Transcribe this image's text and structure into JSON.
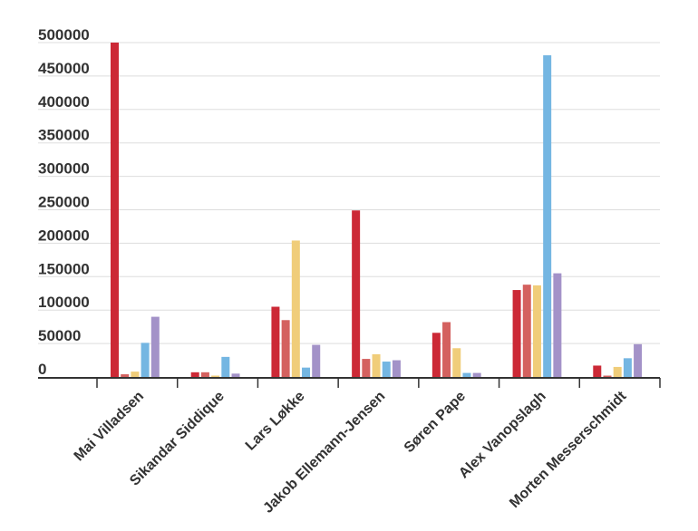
{
  "chart_data": {
    "type": "bar",
    "title": "",
    "xlabel": "",
    "ylabel": "",
    "ylim": [
      0,
      500000
    ],
    "yticks": [
      0,
      50000,
      100000,
      150000,
      200000,
      250000,
      300000,
      350000,
      400000,
      450000,
      500000
    ],
    "grid": true,
    "legend": "none",
    "categories": [
      "Mai Villadsen",
      "Sikandar Siddique",
      "Lars Løkke",
      "Jakob Ellemann-Jensen",
      "Søren Pape",
      "Alex Vanopslagh",
      "Morten Messerschmidt"
    ],
    "series": [
      {
        "color": "#cc2936",
        "values": [
          500000,
          7000,
          105000,
          249000,
          66000,
          130000,
          17000
        ]
      },
      {
        "color": "#d4615f",
        "values": [
          4000,
          7000,
          85000,
          27000,
          82000,
          138000,
          2000
        ]
      },
      {
        "color": "#f0cd7a",
        "values": [
          8000,
          2000,
          204000,
          34000,
          43000,
          137000,
          15000
        ]
      },
      {
        "color": "#74b6e2",
        "values": [
          51000,
          30000,
          14000,
          23000,
          6000,
          481000,
          28000
        ]
      },
      {
        "color": "#a392c8",
        "values": [
          90000,
          5000,
          48000,
          25000,
          6000,
          155000,
          49000
        ]
      }
    ]
  }
}
